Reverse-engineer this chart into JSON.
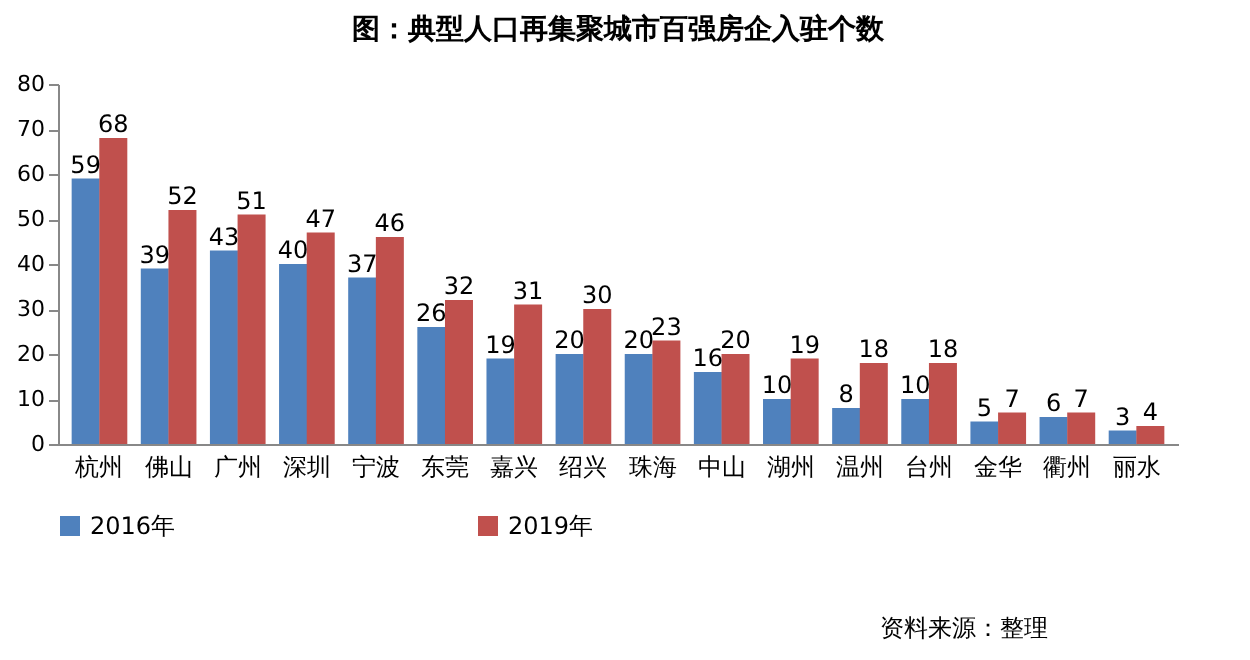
{
  "chart_data": {
    "type": "bar",
    "title": "图：典型人口再集聚城市百强房企入驻个数",
    "categories": [
      "杭州",
      "佛山",
      "广州",
      "深圳",
      "宁波",
      "东莞",
      "嘉兴",
      "绍兴",
      "珠海",
      "中山",
      "湖州",
      "温州",
      "台州",
      "金华",
      "衢州",
      "丽水"
    ],
    "series": [
      {
        "name": "2016年",
        "color": "#4f81bd",
        "values": [
          59,
          39,
          43,
          40,
          37,
          26,
          19,
          20,
          20,
          16,
          10,
          8,
          10,
          5,
          6,
          3
        ]
      },
      {
        "name": "2019年",
        "color": "#c0504d",
        "values": [
          68,
          52,
          51,
          47,
          46,
          32,
          31,
          30,
          23,
          20,
          19,
          18,
          18,
          7,
          7,
          4
        ]
      }
    ],
    "ylim": [
      0,
      80
    ],
    "yticks": [
      0,
      10,
      20,
      30,
      40,
      50,
      60,
      70,
      80
    ],
    "data_labels": true,
    "legend": "bottom",
    "annotations": [
      "资料来源：整理"
    ]
  }
}
